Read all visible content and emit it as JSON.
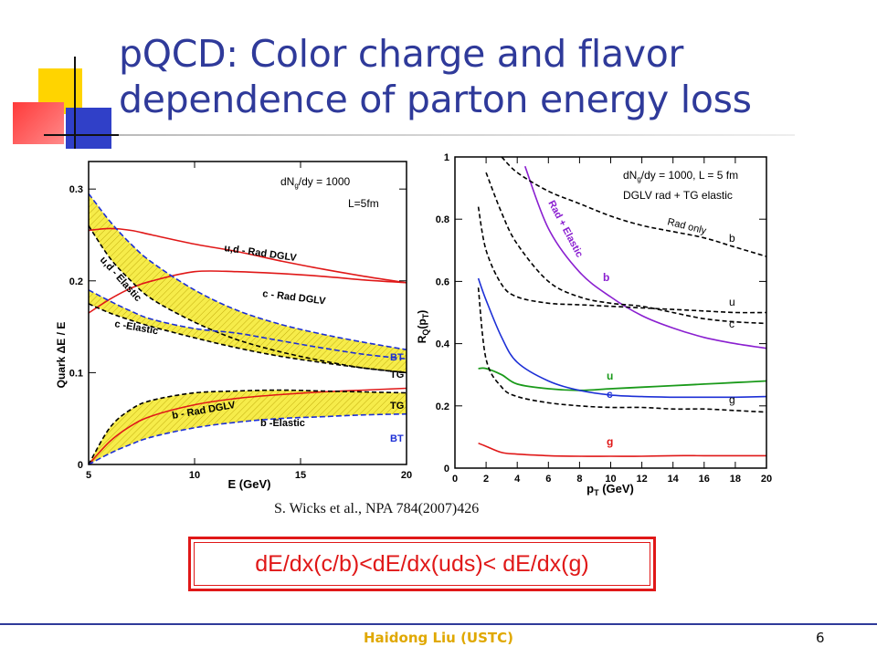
{
  "slide": {
    "title_line1": "pQCD: Color charge and flavor",
    "title_line2": "dependence of parton energy loss",
    "citation": "S. Wicks et al., NPA 784(2007)426",
    "formula": "dE/dx(c/b)<dE/dx(uds)< dE/dx(g)",
    "footer": "Haidong Liu (USTC)",
    "page_number": "6"
  },
  "colors": {
    "title": "#2f3a9a",
    "accent_red": "#e01818",
    "footer_text": "#e0a800",
    "band_yellow": "#f6ec4a",
    "blue": "#1c2fd6",
    "purple": "#8a1fd0",
    "green": "#1a9a1a"
  },
  "chart_data": [
    {
      "type": "line",
      "xlabel": "E (GeV)",
      "ylabel": "Quark ΔE / E",
      "xlim": [
        5,
        20
      ],
      "ylim": [
        0,
        0.33
      ],
      "xticks": [
        "5",
        "10",
        "15",
        "20"
      ],
      "yticks": [
        "0",
        "0.1",
        "0.2",
        "0.3"
      ],
      "annotations": [
        "dNg/dy = 1000",
        "L=5fm",
        "u,d - Rad DGLV",
        "c - Rad DGLV",
        "u,d - Elastic",
        "c -Elastic",
        "b - Rad DGLV",
        "b -Elastic",
        "BT",
        "TG",
        "TG",
        "BT"
      ],
      "series": [
        {
          "label": "u,d - Rad DGLV",
          "style": "red-solid",
          "x": [
            5,
            6,
            7,
            8,
            10,
            12,
            14,
            16,
            18,
            20
          ],
          "y": [
            0.255,
            0.257,
            0.255,
            0.25,
            0.24,
            0.232,
            0.222,
            0.213,
            0.205,
            0.198
          ]
        },
        {
          "label": "c - Rad DGLV",
          "style": "red-solid",
          "x": [
            5,
            6,
            7,
            8,
            10,
            12,
            14,
            16,
            18,
            20
          ],
          "y": [
            0.165,
            0.18,
            0.192,
            0.2,
            0.21,
            0.21,
            0.208,
            0.205,
            0.201,
            0.198
          ]
        },
        {
          "label": "u,d - Elastic TG",
          "style": "black-dashed",
          "x": [
            5,
            6,
            7,
            8,
            10,
            12,
            14,
            16,
            18,
            20
          ],
          "y": [
            0.26,
            0.225,
            0.2,
            0.18,
            0.155,
            0.136,
            0.123,
            0.113,
            0.105,
            0.1
          ]
        },
        {
          "label": "u,d - Elastic BT",
          "style": "blue-dashed",
          "x": [
            5,
            6,
            7,
            8,
            10,
            12,
            14,
            16,
            18,
            20
          ],
          "y": [
            0.295,
            0.265,
            0.24,
            0.22,
            0.19,
            0.168,
            0.153,
            0.142,
            0.133,
            0.125
          ]
        },
        {
          "label": "c -Elastic TG",
          "style": "black-dashed",
          "x": [
            5,
            6,
            7,
            8,
            10,
            12,
            14,
            16,
            18,
            20
          ],
          "y": [
            0.175,
            0.165,
            0.157,
            0.15,
            0.138,
            0.127,
            0.118,
            0.111,
            0.105,
            0.1
          ]
        },
        {
          "label": "c -Elastic BT",
          "style": "blue-dashed",
          "x": [
            5,
            6,
            7,
            8,
            10,
            12,
            14,
            16,
            18,
            20
          ],
          "y": [
            0.19,
            0.178,
            0.167,
            0.158,
            0.148,
            0.143,
            0.135,
            0.127,
            0.12,
            0.115
          ]
        },
        {
          "label": "b - Rad DGLV",
          "style": "red-solid",
          "x": [
            5,
            6,
            7,
            8,
            10,
            12,
            14,
            16,
            18,
            20
          ],
          "y": [
            0.0,
            0.025,
            0.042,
            0.053,
            0.065,
            0.072,
            0.076,
            0.079,
            0.081,
            0.083
          ]
        },
        {
          "label": "b -Elastic TG",
          "style": "black-dashed",
          "x": [
            5,
            6,
            7,
            8,
            10,
            12,
            14,
            16,
            18,
            20
          ],
          "y": [
            0.0,
            0.04,
            0.06,
            0.07,
            0.078,
            0.08,
            0.081,
            0.08,
            0.079,
            0.078
          ]
        },
        {
          "label": "b -Elastic BT",
          "style": "blue-dashed",
          "x": [
            5,
            6,
            7,
            8,
            10,
            12,
            14,
            16,
            18,
            20
          ],
          "y": [
            0.0,
            0.012,
            0.022,
            0.03,
            0.04,
            0.046,
            0.05,
            0.052,
            0.054,
            0.055
          ]
        }
      ]
    },
    {
      "type": "line",
      "xlabel": "pT (GeV)",
      "ylabel": "RQ(pT)",
      "xlim": [
        0,
        20
      ],
      "ylim": [
        0,
        1
      ],
      "xticks": [
        "0",
        "2",
        "4",
        "6",
        "8",
        "10",
        "12",
        "14",
        "16",
        "18",
        "20"
      ],
      "yticks": [
        "0",
        "0.2",
        "0.4",
        "0.6",
        "0.8",
        "1"
      ],
      "annotations": [
        "dNg/dy = 1000, L = 5 fm",
        "DGLV rad + TG elastic",
        "Rad only",
        "Rad + Elastic"
      ],
      "series": [
        {
          "label": "b (Rad + Elastic)",
          "style": "purple-solid",
          "x": [
            4.5,
            6,
            8,
            10,
            12,
            14,
            16,
            18,
            20
          ],
          "y": [
            0.97,
            0.77,
            0.63,
            0.55,
            0.49,
            0.45,
            0.42,
            0.4,
            0.385
          ]
        },
        {
          "label": "u (Rad + Elastic)",
          "style": "green-solid",
          "x": [
            1.5,
            2,
            3,
            4,
            6,
            8,
            10,
            12,
            14,
            16,
            18,
            20
          ],
          "y": [
            0.32,
            0.32,
            0.3,
            0.27,
            0.255,
            0.25,
            0.255,
            0.26,
            0.265,
            0.27,
            0.275,
            0.28
          ]
        },
        {
          "label": "c (Rad + Elastic)",
          "style": "blue-solid",
          "x": [
            1.5,
            2,
            3,
            4,
            6,
            8,
            10,
            12,
            14,
            16,
            18,
            20
          ],
          "y": [
            0.61,
            0.54,
            0.42,
            0.34,
            0.28,
            0.25,
            0.235,
            0.23,
            0.228,
            0.228,
            0.228,
            0.23
          ]
        },
        {
          "label": "g (Rad + Elastic)",
          "style": "red-solid",
          "x": [
            1.5,
            2,
            3,
            4,
            6,
            8,
            10,
            12,
            14,
            16,
            18,
            20
          ],
          "y": [
            0.08,
            0.07,
            0.05,
            0.045,
            0.04,
            0.038,
            0.038,
            0.038,
            0.04,
            0.04,
            0.04,
            0.04
          ]
        },
        {
          "label": "b (Rad only)",
          "style": "black-dashed",
          "x": [
            3,
            4,
            6,
            8,
            10,
            12,
            14,
            16,
            18,
            20
          ],
          "y": [
            1.0,
            0.95,
            0.89,
            0.85,
            0.81,
            0.78,
            0.76,
            0.74,
            0.71,
            0.68
          ]
        },
        {
          "label": "u (Rad only)",
          "style": "black-dashed",
          "x": [
            1.5,
            2,
            3,
            4,
            6,
            8,
            10,
            12,
            14,
            16,
            18,
            20
          ],
          "y": [
            0.84,
            0.7,
            0.59,
            0.55,
            0.53,
            0.525,
            0.52,
            0.515,
            0.51,
            0.505,
            0.5,
            0.5
          ]
        },
        {
          "label": "c (Rad only)",
          "style": "black-dashed",
          "x": [
            2,
            3,
            4,
            6,
            8,
            10,
            12,
            14,
            16,
            18,
            20
          ],
          "y": [
            0.95,
            0.82,
            0.72,
            0.6,
            0.55,
            0.53,
            0.52,
            0.5,
            0.48,
            0.47,
            0.465
          ]
        },
        {
          "label": "g (Rad only)",
          "style": "black-dashed",
          "x": [
            1.5,
            2,
            3,
            4,
            6,
            8,
            10,
            12,
            14,
            16,
            18,
            20
          ],
          "y": [
            0.58,
            0.35,
            0.26,
            0.23,
            0.21,
            0.2,
            0.195,
            0.195,
            0.19,
            0.19,
            0.185,
            0.18
          ]
        }
      ],
      "curve_labels": [
        "b",
        "u",
        "c",
        "b",
        "u",
        "c",
        "g",
        "g"
      ]
    }
  ]
}
